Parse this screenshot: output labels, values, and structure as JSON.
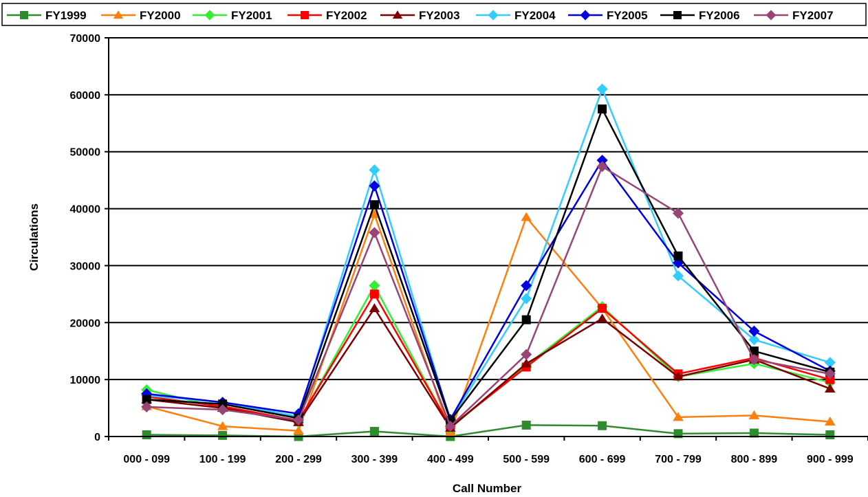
{
  "chart_data": {
    "type": "line",
    "title": "",
    "xlabel": "Call Number",
    "ylabel": "Circulations",
    "ylim": [
      0,
      70000
    ],
    "yticks": [
      0,
      10000,
      20000,
      30000,
      40000,
      50000,
      60000,
      70000
    ],
    "ytick_labels": [
      "0",
      "10000",
      "20000",
      "30000",
      "40000",
      "50000",
      "60000",
      "70000"
    ],
    "grid": "horizontal",
    "legend_position": "top",
    "categories": [
      "000 - 099",
      "100 - 199",
      "200 - 299",
      "300 - 399",
      "400 - 499",
      "500 - 599",
      "600 - 699",
      "700 - 799",
      "800 - 899",
      "900 - 999"
    ],
    "series": [
      {
        "name": "FY1999",
        "color": "#2e8b2e",
        "marker": "square",
        "values": [
          300,
          200,
          0,
          900,
          0,
          2000,
          1900,
          500,
          600,
          300
        ]
      },
      {
        "name": "FY2000",
        "color": "#ff7f0e",
        "marker": "triangle",
        "values": [
          5300,
          1800,
          1000,
          39000,
          800,
          38500,
          22500,
          3400,
          3700,
          2600
        ]
      },
      {
        "name": "FY2001",
        "color": "#33ee33",
        "marker": "diamond",
        "values": [
          8200,
          5000,
          2500,
          26500,
          1500,
          12500,
          22800,
          10500,
          12800,
          9500
        ]
      },
      {
        "name": "FY2002",
        "color": "#ff0000",
        "marker": "square",
        "values": [
          7000,
          5300,
          2800,
          25000,
          1700,
          12200,
          22500,
          11000,
          13800,
          10000
        ]
      },
      {
        "name": "FY2003",
        "color": "#7b0000",
        "marker": "triangle",
        "values": [
          6500,
          5000,
          2500,
          22500,
          1500,
          12800,
          20700,
          10500,
          13500,
          8400
        ]
      },
      {
        "name": "FY2004",
        "color": "#33ccff",
        "marker": "diamond",
        "values": [
          7200,
          6000,
          3500,
          46800,
          2800,
          24200,
          61000,
          28200,
          17000,
          13000
        ]
      },
      {
        "name": "FY2005",
        "color": "#0000dd",
        "marker": "diamond",
        "values": [
          7500,
          6000,
          4000,
          44000,
          3000,
          26500,
          48500,
          30500,
          18500,
          11500
        ]
      },
      {
        "name": "FY2006",
        "color": "#000000",
        "marker": "square",
        "values": [
          6500,
          5700,
          3200,
          40700,
          2800,
          20500,
          57500,
          31700,
          15000,
          11300
        ]
      },
      {
        "name": "FY2007",
        "color": "#994477",
        "marker": "diamond",
        "values": [
          5200,
          4700,
          2900,
          35800,
          1800,
          14400,
          47400,
          39200,
          13500,
          11000
        ]
      }
    ]
  }
}
